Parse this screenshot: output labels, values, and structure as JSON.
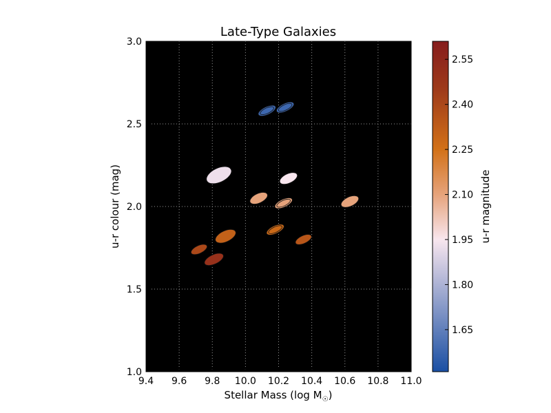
{
  "chart_data": {
    "type": "scatter",
    "title": "Late-Type Galaxies",
    "xlabel": "Stellar Mass (log M",
    "xlabel_sub": "☉",
    "xlabel_close": ")",
    "ylabel": "u-r colour (mag)",
    "xlim": [
      9.4,
      11.0
    ],
    "ylim": [
      1.0,
      3.0
    ],
    "x_ticks": [
      "9.4",
      "9.6",
      "9.8",
      "10.0",
      "10.2",
      "10.4",
      "10.6",
      "10.8",
      "11.0"
    ],
    "y_ticks": [
      "1.0",
      "1.5",
      "2.0",
      "2.5",
      "3.0"
    ],
    "grid": true,
    "background": "#000000",
    "grid_color": "#999999",
    "colorbar": {
      "label": "u-r magnitude",
      "range": [
        1.51,
        2.61
      ],
      "ticks": [
        "1.65",
        "1.80",
        "1.95",
        "2.10",
        "2.25",
        "2.40",
        "2.55"
      ],
      "stops": [
        {
          "v": 1.51,
          "color": "#1a4fa3"
        },
        {
          "v": 1.95,
          "color": "#f8e6ee"
        },
        {
          "v": 2.1,
          "color": "#e6a37b"
        },
        {
          "v": 2.25,
          "color": "#d27118"
        },
        {
          "v": 2.45,
          "color": "#9e3a1a"
        },
        {
          "v": 2.61,
          "color": "#861d1d"
        }
      ]
    },
    "points": [
      {
        "x": 10.13,
        "y": 2.58,
        "c": 1.58,
        "w": 0.12,
        "h": 0.05,
        "ang": -25,
        "ring": true
      },
      {
        "x": 10.24,
        "y": 2.6,
        "c": 1.58,
        "w": 0.12,
        "h": 0.05,
        "ang": -25,
        "ring": true
      },
      {
        "x": 9.84,
        "y": 2.19,
        "c": 1.93,
        "w": 0.17,
        "h": 0.09,
        "ang": -25,
        "ring": false
      },
      {
        "x": 10.26,
        "y": 2.17,
        "c": 1.95,
        "w": 0.12,
        "h": 0.06,
        "ang": -25,
        "ring": false
      },
      {
        "x": 10.08,
        "y": 2.05,
        "c": 2.1,
        "w": 0.12,
        "h": 0.06,
        "ang": -25,
        "ring": false
      },
      {
        "x": 10.23,
        "y": 2.02,
        "c": 2.1,
        "w": 0.12,
        "h": 0.05,
        "ang": -25,
        "ring": true
      },
      {
        "x": 10.63,
        "y": 2.03,
        "c": 2.1,
        "w": 0.12,
        "h": 0.06,
        "ang": -25,
        "ring": false
      },
      {
        "x": 9.88,
        "y": 1.82,
        "c": 2.31,
        "w": 0.14,
        "h": 0.07,
        "ang": -25,
        "ring": false
      },
      {
        "x": 10.18,
        "y": 1.86,
        "c": 2.28,
        "w": 0.12,
        "h": 0.05,
        "ang": -25,
        "ring": true
      },
      {
        "x": 10.35,
        "y": 1.8,
        "c": 2.35,
        "w": 0.11,
        "h": 0.05,
        "ang": -25,
        "ring": false
      },
      {
        "x": 9.72,
        "y": 1.74,
        "c": 2.4,
        "w": 0.11,
        "h": 0.05,
        "ang": -25,
        "ring": false
      },
      {
        "x": 9.81,
        "y": 1.68,
        "c": 2.5,
        "w": 0.13,
        "h": 0.06,
        "ang": -25,
        "ring": false
      }
    ]
  }
}
